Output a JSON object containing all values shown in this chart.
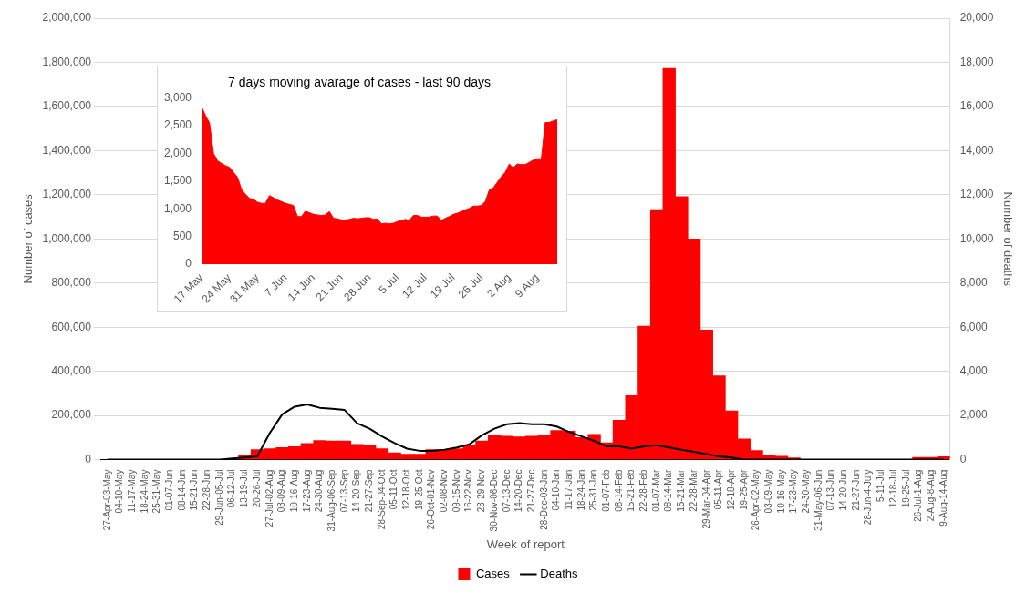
{
  "chart_data": [
    {
      "type": "bar",
      "xlabel": "Week of report",
      "ylabel": "Number of cases",
      "y2label": "Number of deaths",
      "categories": [
        "27-Apr-03-May",
        "04-10-May",
        "11-17-May",
        "18-24-May",
        "25-31-May",
        "01-07-Jun",
        "08-14-Jun",
        "15-21-Jun",
        "22-28-Jun",
        "29-Jun-05-Jul",
        "06-12-Jul",
        "13-19-Jul",
        "20-26-Jul",
        "27-Jul-02-Aug",
        "03-09-Aug",
        "10-16-Aug",
        "17-23-Aug",
        "24-30-Aug",
        "31-Aug-06-Sep",
        "07-13-Sep",
        "14-20-Sep",
        "21-27-Sep",
        "28-Sep-04-Oct",
        "05-11-Oct",
        "12-18-Oct",
        "19-25-Oct",
        "26-Oct-01-Nov",
        "02-08-Nov",
        "09-15-Nov",
        "16-22-Nov",
        "23-29-Nov",
        "30-Nov-06-Dec",
        "07-13-Dec",
        "14-20-Dec",
        "21-27-Dec",
        "28-Dec-03-Jan",
        "04-10-Jan",
        "11-17-Jan",
        "18-24-Jan",
        "25-31-Jan",
        "01-07-Feb",
        "08-14-Feb",
        "15-21-Feb",
        "22-28-Feb",
        "01-07-Mar",
        "08-14-Mar",
        "15-21-Mar",
        "22-28-Mar",
        "29-Mar-04-Apr",
        "05-11-Apr",
        "12-18-Apr",
        "19-25-Apr",
        "26-Apr-02-May",
        "03-09-May",
        "10-16-May",
        "17-23-May",
        "24-30-May",
        "31-May-06-Jun",
        "07-13-Jun",
        "14-20-Jun",
        "21-27-Jun",
        "28-Jun-4-July",
        "5-11-Jul",
        "12-18-Jul",
        "19-25-Jul",
        "26-Jul-1-Aug",
        "2-Aug-8-Aug",
        "9-Aug-14-Aug"
      ],
      "series": [
        {
          "name": "Cases",
          "type": "bar",
          "color": "#ff0000",
          "values": [
            null,
            null,
            null,
            null,
            null,
            null,
            null,
            null,
            null,
            null,
            null,
            20000,
            45000,
            50000,
            55000,
            59000,
            73000,
            87000,
            85000,
            85000,
            69000,
            65000,
            50000,
            31000,
            25000,
            25000,
            45000,
            45000,
            50000,
            65000,
            85000,
            110000,
            106000,
            103000,
            106000,
            110000,
            132000,
            129000,
            100000,
            115000,
            76000,
            178000,
            290000,
            605000,
            1133000,
            1773000,
            1192000,
            1000000,
            587000,
            380000,
            221000,
            94000,
            41000,
            18000,
            15000,
            8000,
            null,
            null,
            null,
            null,
            null,
            null,
            null,
            null,
            null,
            10000,
            10000,
            13000
          ]
        },
        {
          "name": "Deaths",
          "type": "line",
          "axis": "y2",
          "color": "#000000",
          "values": [
            0,
            0,
            0,
            0,
            0,
            0,
            0,
            0,
            0,
            0,
            50,
            100,
            150,
            1200,
            2050,
            2400,
            2500,
            2350,
            2300,
            2250,
            1650,
            1400,
            1050,
            750,
            500,
            400,
            400,
            450,
            550,
            700,
            1100,
            1400,
            1600,
            1650,
            1600,
            1600,
            1500,
            1250,
            1050,
            850,
            600,
            600,
            500,
            600,
            650,
            550,
            450,
            350,
            250,
            150,
            100,
            0,
            0,
            0,
            0,
            0,
            0,
            0,
            0,
            0,
            0,
            0,
            0,
            0,
            0,
            0,
            0,
            0
          ]
        }
      ],
      "ylim": [
        0,
        2000000
      ],
      "yticks": [
        {
          "value": 0,
          "label": "0"
        },
        {
          "value": 200000,
          "label": "200,000"
        },
        {
          "value": 400000,
          "label": "400,000"
        },
        {
          "value": 600000,
          "label": "600,000"
        },
        {
          "value": 800000,
          "label": "800,000"
        },
        {
          "value": 1000000,
          "label": "1,000,000"
        },
        {
          "value": 1200000,
          "label": "1,200,000"
        },
        {
          "value": 1400000,
          "label": "1,400,000"
        },
        {
          "value": 1600000,
          "label": "1,600,000"
        },
        {
          "value": 1800000,
          "label": "1,800,000"
        },
        {
          "value": 2000000,
          "label": "2,000,000"
        }
      ],
      "y2lim": [
        0,
        20000
      ],
      "y2ticks": [
        {
          "value": 0,
          "label": "0"
        },
        {
          "value": 2000,
          "label": "2,000"
        },
        {
          "value": 4000,
          "label": "4,000"
        },
        {
          "value": 6000,
          "label": "6,000"
        },
        {
          "value": 8000,
          "label": "8,000"
        },
        {
          "value": 10000,
          "label": "10,000"
        },
        {
          "value": 12000,
          "label": "12,000"
        },
        {
          "value": 14000,
          "label": "14,000"
        },
        {
          "value": 16000,
          "label": "16,000"
        },
        {
          "value": 18000,
          "label": "18,000"
        },
        {
          "value": 20000,
          "label": "20,000"
        }
      ],
      "grid": "y",
      "legend": "bottom"
    },
    {
      "type": "area",
      "title": "7 days moving avarage of cases - last 90 days",
      "color": "#ff0000",
      "x": [
        "--05-17",
        "--05-18",
        "--05-19",
        "--05-20",
        "--05-21",
        "--05-22",
        "--05-23",
        "--05-24",
        "--05-25",
        "--05-26",
        "--05-27",
        "--05-28",
        "--05-29",
        "--05-30",
        "--05-31",
        "--06-01",
        "--06-02",
        "--06-03",
        "--06-04",
        "--06-05",
        "--06-06",
        "--06-07",
        "--06-08",
        "--06-09",
        "--06-10",
        "--06-11",
        "--06-12",
        "--06-13",
        "--06-14",
        "--06-15",
        "--06-16",
        "--06-17",
        "--06-18",
        "--06-19",
        "--06-20",
        "--06-21",
        "--06-22",
        "--06-23",
        "--06-24",
        "--06-25",
        "--06-26",
        "--06-27",
        "--06-28",
        "--06-29",
        "--06-30",
        "--07-01",
        "--07-02",
        "--07-03",
        "--07-04",
        "--07-05",
        "--07-06",
        "--07-07",
        "--07-08",
        "--07-09",
        "--07-10",
        "--07-11",
        "--07-12",
        "--07-13",
        "--07-14",
        "--07-15",
        "--07-16",
        "--07-17",
        "--07-18",
        "--07-19",
        "--07-20",
        "--07-21",
        "--07-22",
        "--07-23",
        "--07-24",
        "--07-25",
        "--07-26",
        "--07-27",
        "--07-28",
        "--07-29",
        "--07-30",
        "--07-31",
        "--08-01",
        "--08-02",
        "--08-03",
        "--08-04",
        "--08-05",
        "--08-06",
        "--08-07",
        "--08-08",
        "--08-09",
        "--08-10",
        "--08-11",
        "--08-12",
        "--08-13",
        "--08-14"
      ],
      "values": [
        2840,
        2690,
        2550,
        2000,
        1870,
        1820,
        1780,
        1750,
        1660,
        1570,
        1350,
        1260,
        1190,
        1170,
        1120,
        1100,
        1100,
        1240,
        1200,
        1160,
        1130,
        1100,
        1080,
        1060,
        860,
        860,
        960,
        930,
        900,
        890,
        880,
        890,
        950,
        830,
        820,
        800,
        800,
        810,
        830,
        820,
        830,
        840,
        840,
        810,
        820,
        730,
        740,
        730,
        740,
        770,
        790,
        810,
        790,
        880,
        880,
        850,
        850,
        850,
        870,
        870,
        790,
        830,
        860,
        900,
        920,
        950,
        980,
        1010,
        1050,
        1050,
        1060,
        1130,
        1340,
        1380,
        1480,
        1580,
        1660,
        1810,
        1740,
        1810,
        1800,
        1800,
        1840,
        1880,
        1890,
        1890,
        2560,
        2560,
        2590,
        2610
      ],
      "xlim": [
        "--05-17",
        "--08-14"
      ],
      "xticks": [
        {
          "value": "--05-17",
          "label": "17 May"
        },
        {
          "value": "--05-24",
          "label": "24 May"
        },
        {
          "value": "--05-31",
          "label": "31 May"
        },
        {
          "value": "--06-07",
          "label": "7 Jun"
        },
        {
          "value": "--06-14",
          "label": "14 Jun"
        },
        {
          "value": "--06-21",
          "label": "21 Jun"
        },
        {
          "value": "--06-28",
          "label": "28 Jun"
        },
        {
          "value": "--07-05",
          "label": "5 Jul"
        },
        {
          "value": "--07-12",
          "label": "12 Jul"
        },
        {
          "value": "--07-19",
          "label": "19 Jul"
        },
        {
          "value": "--07-26",
          "label": "26 Jul"
        },
        {
          "value": "--08-02",
          "label": "2 Aug"
        },
        {
          "value": "--08-09",
          "label": "9 Aug"
        }
      ],
      "ylim": [
        0,
        3000
      ],
      "yticks": [
        {
          "value": 0,
          "label": "0"
        },
        {
          "value": 500,
          "label": "500"
        },
        {
          "value": 1000,
          "label": "1,000"
        },
        {
          "value": 1500,
          "label": "1,500"
        },
        {
          "value": 2000,
          "label": "2,000"
        },
        {
          "value": 2500,
          "label": "2,500"
        },
        {
          "value": 3000,
          "label": "3,000"
        }
      ]
    }
  ]
}
